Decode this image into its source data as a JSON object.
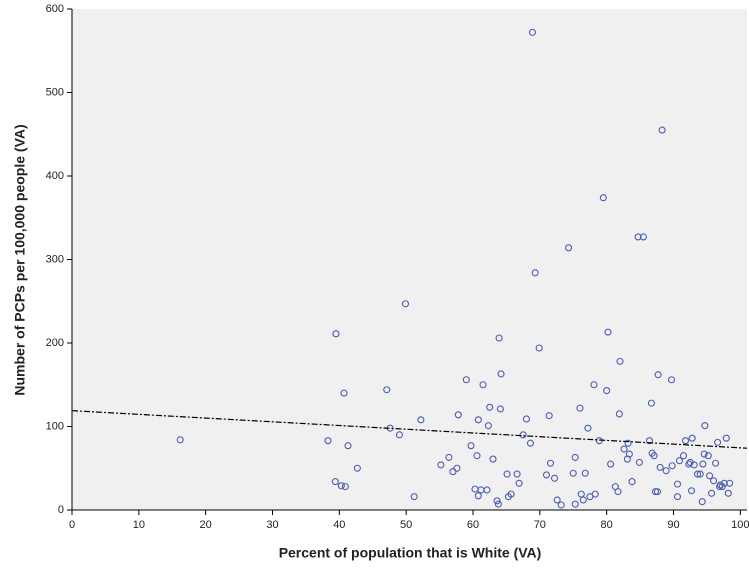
{
  "chart_data": {
    "type": "scatter",
    "x_label": "Percent of population that is White (VA)",
    "y_label": "Number of PCPs per 100,000 people (VA)",
    "xlim": [
      0,
      101
    ],
    "ylim": [
      0,
      600
    ],
    "xticks": [
      0,
      10,
      20,
      30,
      40,
      50,
      60,
      70,
      80,
      90,
      100
    ],
    "yticks": [
      0,
      100,
      200,
      300,
      400,
      500,
      600
    ],
    "color": "#4a5db0",
    "background": "#f0f0f0",
    "x": [
      16.2,
      39.5,
      40.7,
      38.3,
      41.3,
      39.4,
      40.3,
      40.9,
      42.7,
      47.1,
      47.6,
      49,
      49.9,
      51.2,
      52.2,
      55.2,
      56.4,
      57,
      57.6,
      57.8,
      59,
      59.7,
      60.3,
      60.6,
      60.8,
      60.8,
      61.2,
      61.5,
      62.1,
      62.3,
      62.5,
      63,
      63.6,
      63.8,
      63.9,
      64.1,
      64.2,
      65.1,
      65.3,
      65.7,
      66.6,
      66.9,
      67.5,
      68,
      68.6,
      68.9,
      69.3,
      69.9,
      71,
      71.4,
      71.6,
      72.2,
      72.6,
      73.2,
      74.3,
      75,
      75.3,
      75.3,
      76,
      76.2,
      76.5,
      76.8,
      77.2,
      77.5,
      78.1,
      78.3,
      78.9,
      79.5,
      80,
      80.2,
      80.6,
      81.3,
      81.7,
      81.9,
      82,
      82.6,
      83.1,
      83.2,
      83.4,
      83.8,
      84.7,
      85.5,
      84.9,
      86.4,
      86.7,
      86.8,
      87.1,
      87.3,
      87.6,
      87.7,
      88,
      88.3,
      88.9,
      89.7,
      89.8,
      90.6,
      90.6,
      90.9,
      91.5,
      91.8,
      92.3,
      92.5,
      92.7,
      92.8,
      93.1,
      93.6,
      94,
      94.3,
      94.4,
      94.6,
      94.7,
      95.2,
      95.4,
      95.7,
      96,
      96.3,
      96.6,
      96.9,
      97,
      97.3,
      97.6,
      97.9,
      98.2,
      98.4
    ],
    "values": [
      84,
      211,
      140,
      83,
      77,
      34,
      29,
      28,
      50,
      144,
      98,
      90,
      247,
      16,
      108,
      54,
      63,
      46,
      50,
      114,
      156,
      77,
      25,
      65,
      108,
      17,
      24,
      150,
      24,
      101,
      123,
      61,
      11,
      7,
      206,
      121,
      163,
      43,
      16,
      19,
      43,
      32,
      90,
      109,
      80,
      572,
      284,
      194,
      42,
      113,
      56,
      38,
      12,
      6,
      314,
      44,
      7,
      63,
      122,
      19,
      12,
      44,
      98,
      16,
      150,
      19,
      83,
      374,
      143,
      213,
      55,
      28,
      22,
      115,
      178,
      73,
      61,
      80,
      67,
      34,
      327,
      327,
      57,
      83,
      128,
      68,
      65,
      22,
      22,
      162,
      51,
      455,
      47,
      156,
      53,
      16,
      31,
      59,
      65,
      83,
      55,
      57,
      23,
      86,
      54,
      43,
      43,
      10,
      55,
      67,
      101,
      65,
      41,
      20,
      35,
      56,
      81,
      28,
      30,
      28,
      32,
      86,
      20,
      32
    ],
    "fit_line": {
      "x": [
        0,
        101
      ],
      "values": [
        119,
        74
      ]
    }
  }
}
